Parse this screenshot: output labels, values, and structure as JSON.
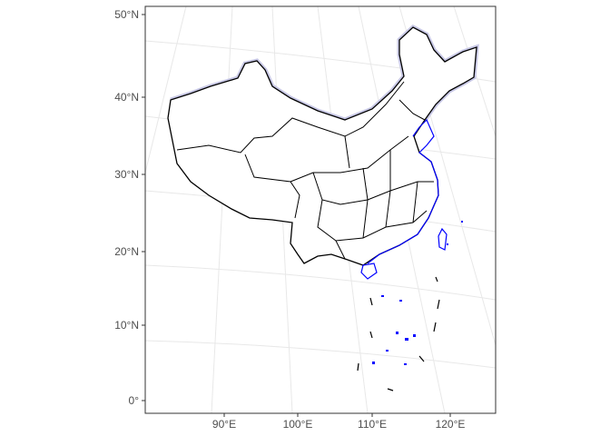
{
  "map": {
    "y_axis_labels": [
      "50°N",
      "40°N",
      "30°N",
      "20°N",
      "10°N",
      "0°"
    ],
    "x_axis_labels": [
      "90°E",
      "100°E",
      "110°E",
      "120°E"
    ],
    "colors": {
      "border": "#000000",
      "coast": "#0000ff",
      "glow": "#c8c8e6",
      "grid": "#ebebeb",
      "panel_border": "#333333"
    }
  }
}
